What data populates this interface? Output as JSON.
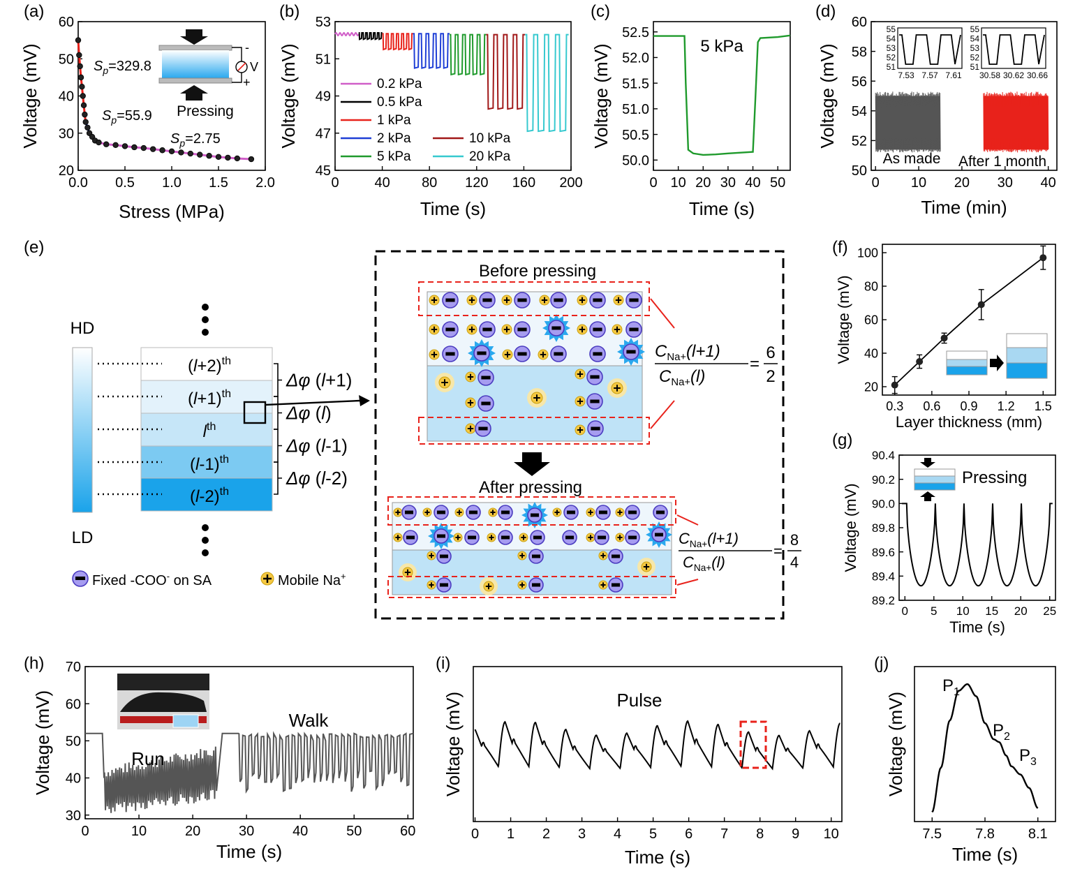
{
  "panel_labels": [
    "(a)",
    "(b)",
    "(c)",
    "(d)",
    "(e)",
    "(f)",
    "(g)",
    "(h)",
    "(i)",
    "(j)"
  ],
  "colors": {
    "red": "#e8221b",
    "blue": "#1f3fd6",
    "magenta": "#d05ec8",
    "green": "#1f9a2c",
    "darkred": "#a11818",
    "cyan": "#36c9cf",
    "gray": "#555555",
    "lightblue": "#a9d8f2",
    "deepblue": "#1aa3ea",
    "redtext": "#e8221b"
  },
  "chart_data": [
    {
      "id": "a",
      "type": "scatter",
      "xlabel": "Stress (MPa)",
      "ylabel": "Voltage (mV)",
      "xlim": [
        0,
        2.0
      ],
      "ylim": [
        20,
        60
      ],
      "xticks": [
        "0.0",
        "0.5",
        "1.0",
        "1.5",
        "2.0"
      ],
      "yticks": [
        "20",
        "30",
        "40",
        "50",
        "60"
      ],
      "x": [
        0.0,
        0.01,
        0.02,
        0.03,
        0.04,
        0.05,
        0.06,
        0.07,
        0.08,
        0.1,
        0.12,
        0.15,
        0.18,
        0.22,
        0.3,
        0.4,
        0.5,
        0.6,
        0.7,
        0.8,
        0.9,
        1.0,
        1.1,
        1.2,
        1.3,
        1.4,
        1.5,
        1.6,
        1.7,
        1.85
      ],
      "y": [
        55,
        51,
        48,
        45,
        42.5,
        40,
        37.5,
        35,
        33,
        31.5,
        30,
        29,
        28,
        27.5,
        27,
        26.8,
        26.5,
        26.2,
        26,
        25.7,
        25.4,
        25.1,
        24.8,
        24.5,
        24.2,
        23.9,
        23.6,
        23.4,
        23.2,
        23
      ],
      "fits": [
        {
          "label": "Sp=329.8",
          "color": "red",
          "x": [
            0,
            0.08
          ]
        },
        {
          "label": "Sp=55.9",
          "color": "blue",
          "x": [
            0.08,
            0.22
          ]
        },
        {
          "label": "Sp=2.75",
          "color": "magenta",
          "x": [
            0.22,
            1.85
          ]
        }
      ],
      "annotations": {
        "sp1_val": "=329.8",
        "sp2_val": "=55.9",
        "sp3_val": "=2.75",
        "inset": "Pressing",
        "inset_v": "V",
        "minus": "-",
        "plus": "+"
      }
    },
    {
      "id": "b",
      "type": "line",
      "xlabel": "Time (s)",
      "ylabel": "Voltage (mV)",
      "xlim": [
        0,
        200
      ],
      "ylim": [
        45,
        53
      ],
      "xticks": [
        "0",
        "40",
        "80",
        "120",
        "160",
        "200"
      ],
      "yticks": [
        "45",
        "47",
        "49",
        "51",
        "53"
      ],
      "series": [
        {
          "name": "0.2 kPa",
          "color": "magenta",
          "t": [
            0,
            20
          ],
          "high": 52.4,
          "low": 52.25,
          "cycles": 6
        },
        {
          "name": "0.5 kPa",
          "color": "#000",
          "t": [
            20,
            40
          ],
          "high": 52.4,
          "low": 52.05,
          "cycles": 6
        },
        {
          "name": "1 kPa",
          "color": "red",
          "t": [
            40,
            66
          ],
          "high": 52.35,
          "low": 51.5,
          "cycles": 6
        },
        {
          "name": "2 kPa",
          "color": "blue",
          "t": [
            66,
            97
          ],
          "high": 52.35,
          "low": 50.5,
          "cycles": 5
        },
        {
          "name": "5 kPa",
          "color": "green",
          "t": [
            97,
            128
          ],
          "high": 52.3,
          "low": 50.15,
          "cycles": 5
        },
        {
          "name": "10 kPa",
          "color": "darkred",
          "t": [
            128,
            161
          ],
          "high": 52.3,
          "low": 48.3,
          "cycles": 4
        },
        {
          "name": "20 kPa",
          "color": "cyan",
          "t": [
            161,
            198
          ],
          "high": 52.3,
          "low": 47.1,
          "cycles": 4
        }
      ]
    },
    {
      "id": "c",
      "type": "line",
      "xlabel": "Time (s)",
      "ylabel": "Voltage (mV)",
      "xlim": [
        0,
        55
      ],
      "ylim": [
        49.8,
        52.7
      ],
      "xticks": [
        "0",
        "10",
        "20",
        "30",
        "40",
        "50"
      ],
      "yticks": [
        "50.0",
        "50.5",
        "51.0",
        "51.5",
        "52.0",
        "52.5"
      ],
      "annotation": "5 kPa",
      "color": "green",
      "x": [
        0,
        12.5,
        13,
        14,
        16,
        20,
        25,
        30,
        40,
        41,
        42,
        43,
        50,
        55
      ],
      "y": [
        52.42,
        52.42,
        51.5,
        50.2,
        50.13,
        50.1,
        50.11,
        50.13,
        50.16,
        51.2,
        52.3,
        52.38,
        52.4,
        52.43
      ]
    },
    {
      "id": "d",
      "type": "line",
      "xlabel": "Time (min)",
      "ylabel": "Voltage (mV)",
      "xlim": [
        -1,
        42
      ],
      "ylim": [
        50,
        60
      ],
      "xticks": [
        "0",
        "10",
        "20",
        "30",
        "40"
      ],
      "yticks": [
        "50",
        "52",
        "54",
        "56",
        "58",
        "60"
      ],
      "labels": [
        "As made",
        "After 1 month"
      ],
      "bands": [
        {
          "t": [
            0,
            15
          ],
          "low": 51.4,
          "high": 55,
          "color": "gray"
        },
        {
          "t": [
            25,
            40
          ],
          "low": 51.4,
          "high": 55,
          "color": "red"
        }
      ],
      "insets": [
        {
          "xticks": [
            "7.53",
            "7.57",
            "7.61"
          ],
          "yticks": [
            "51",
            "52",
            "53",
            "54",
            "55"
          ]
        },
        {
          "xticks": [
            "30.58",
            "30.62",
            "30.66"
          ],
          "yticks": [
            "51",
            "52",
            "53",
            "54",
            "55"
          ]
        }
      ]
    },
    {
      "id": "f",
      "type": "scatter",
      "xlabel": "Layer thickness (mm)",
      "ylabel": "Voltage (mV)",
      "xlim": [
        0.2,
        1.6
      ],
      "ylim": [
        15,
        105
      ],
      "xticks": [
        "0.3",
        "0.6",
        "0.9",
        "1.2",
        "1.5"
      ],
      "yticks": [
        "20",
        "40",
        "60",
        "80",
        "100"
      ],
      "x": [
        0.3,
        0.5,
        0.7,
        1.0,
        1.5
      ],
      "y": [
        21,
        35,
        49,
        69,
        97
      ],
      "err": [
        5,
        4,
        3,
        9,
        7
      ]
    },
    {
      "id": "g",
      "type": "line",
      "xlabel": "Time (s)",
      "ylabel": "Voltage (mV)",
      "xlim": [
        -1,
        26
      ],
      "ylim": [
        89.2,
        90.4
      ],
      "xticks": [
        "0",
        "5",
        "10",
        "15",
        "20",
        "25"
      ],
      "yticks": [
        "89.2",
        "89.4",
        "89.6",
        "89.8",
        "90.0",
        "90.2",
        "90.4"
      ],
      "annotation": "Pressing",
      "color": "#000",
      "baseline": 90.0,
      "trough": 89.32,
      "cycles": 5
    },
    {
      "id": "h",
      "type": "line",
      "xlabel": "Time (s)",
      "ylabel": "Voltage (mV)",
      "xlim": [
        0,
        61
      ],
      "ylim": [
        29,
        70
      ],
      "xticks": [
        "0",
        "10",
        "20",
        "30",
        "40",
        "50",
        "60"
      ],
      "yticks": [
        "30",
        "40",
        "50",
        "60",
        "70"
      ],
      "labels": [
        "Run",
        "Walk"
      ],
      "color": "gray"
    },
    {
      "id": "i",
      "type": "line",
      "xlabel": "Time (s)",
      "ylabel": "Voltage (mV)",
      "xlim": [
        -0.05,
        10.3
      ],
      "xticks": [
        "0",
        "1",
        "2",
        "3",
        "4",
        "5",
        "6",
        "7",
        "8",
        "9",
        "10"
      ],
      "annotation": "Pulse",
      "color": "#000",
      "period": 0.855
    },
    {
      "id": "j",
      "type": "line",
      "xlabel": "Time (s)",
      "ylabel": "Voltage (mV)",
      "xlim": [
        7.4,
        8.2
      ],
      "xticks": [
        "7.5",
        "7.8",
        "8.1"
      ],
      "peaks": [
        "P",
        "P",
        "P"
      ],
      "peak_sub": [
        "1",
        "2",
        "3"
      ],
      "x": [
        7.5,
        7.55,
        7.6,
        7.65,
        7.7,
        7.75,
        7.8,
        7.85,
        7.88,
        7.92,
        7.95,
        8.0,
        8.05,
        8.1
      ],
      "y": [
        0.02,
        0.35,
        0.7,
        0.92,
        0.97,
        0.88,
        0.68,
        0.56,
        0.54,
        0.44,
        0.36,
        0.3,
        0.2,
        0.05
      ]
    }
  ],
  "schematic": {
    "hd": "HD",
    "ld": "LD",
    "layers": [
      {
        "pre": "(",
        "var": "l",
        "post": "+2)",
        "sup": "th"
      },
      {
        "pre": "(",
        "var": "l",
        "post": "+1)",
        "sup": "th"
      },
      {
        "pre": "",
        "var": "l",
        "post": "",
        "sup": "th"
      },
      {
        "pre": "(",
        "var": "l",
        "post": "-1)",
        "sup": "th"
      },
      {
        "pre": "(",
        "var": "l",
        "post": "-2)",
        "sup": "th"
      }
    ],
    "deltas": [
      {
        "arg": "+1"
      },
      {
        "arg": ""
      },
      {
        "arg": "-1"
      },
      {
        "arg": "-2"
      }
    ],
    "delta_symbol": "Δφ",
    "before": "Before pressing",
    "after": "After pressing",
    "ratio_before": {
      "num": "6",
      "den": "2"
    },
    "ratio_after": {
      "num": "8",
      "den": "4"
    },
    "ratio_c": "C",
    "ratio_sub": "Na+",
    "ratio_num_arg": "(l+1)",
    "ratio_den_arg": "(l)",
    "legend_fixed": "Fixed -COO",
    "legend_fixed_sup": "-",
    "legend_fixed_tail": " on SA",
    "legend_mobile": "Mobile Na",
    "legend_mobile_sup": "+"
  }
}
